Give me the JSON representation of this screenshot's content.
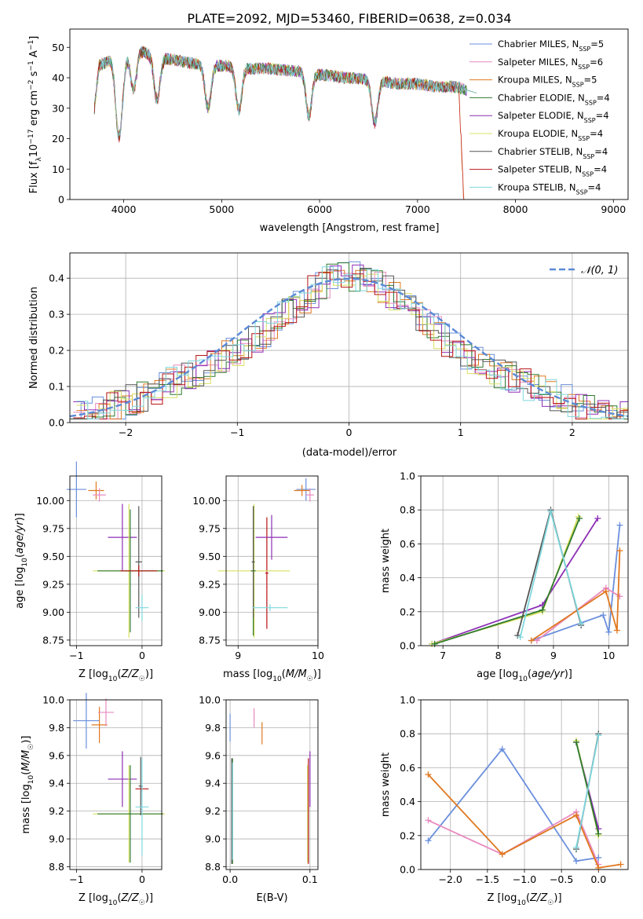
{
  "title": "PLATE=2092, MJD=53460, FIBERID=0638, z=0.034",
  "series": [
    {
      "name": "Chabrier MILES",
      "nssp": "5",
      "color": "#6a8fdc"
    },
    {
      "name": "Salpeter MILES",
      "nssp": "6",
      "color": "#e88ac0"
    },
    {
      "name": "Kroupa MILES",
      "nssp": "5",
      "color": "#e07820"
    },
    {
      "name": "Chabrier ELODIE",
      "nssp": "4",
      "color": "#2f7a2f"
    },
    {
      "name": "Salpeter ELODIE",
      "nssp": "4",
      "color": "#8e2fb5"
    },
    {
      "name": "Kroupa ELODIE",
      "nssp": "4",
      "color": "#d8e060"
    },
    {
      "name": "Chabrier STELIB",
      "nssp": "4",
      "color": "#555555"
    },
    {
      "name": "Salpeter STELIB",
      "nssp": "4",
      "color": "#b81414"
    },
    {
      "name": "Kroupa STELIB",
      "nssp": "4",
      "color": "#7fd8de"
    }
  ],
  "chart_data": [
    {
      "id": "spectrum",
      "type": "line",
      "xlabel": "wavelength [Angstrom, rest frame]",
      "ylabel": "Flux [f_λ 10^-17 erg cm^-2 s^-1 A^-1]",
      "xlim": [
        3450,
        9150
      ],
      "ylim": [
        0,
        56
      ],
      "xticks": [
        4000,
        5000,
        6000,
        7000,
        8000,
        9000
      ],
      "yticks": [
        0,
        10,
        20,
        30,
        40,
        50
      ],
      "grid": false,
      "legend": "top-right",
      "continuum": [
        [
          3700,
          30
        ],
        [
          3750,
          44
        ],
        [
          3820,
          45
        ],
        [
          3900,
          47
        ],
        [
          3950,
          44
        ],
        [
          4000,
          46
        ],
        [
          4100,
          50
        ],
        [
          4300,
          47
        ],
        [
          4500,
          46
        ],
        [
          4800,
          44
        ],
        [
          5000,
          44
        ],
        [
          5300,
          43
        ],
        [
          5500,
          43
        ],
        [
          5800,
          42
        ],
        [
          6000,
          41
        ],
        [
          6300,
          40
        ],
        [
          6600,
          39
        ],
        [
          6800,
          38
        ],
        [
          7000,
          38
        ],
        [
          7200,
          37
        ],
        [
          7400,
          37
        ],
        [
          7500,
          36
        ]
      ],
      "absorption_lines": [
        3934,
        3969,
        4101,
        4340,
        4861,
        5175,
        5890,
        6563
      ]
    },
    {
      "id": "residuals",
      "type": "bar",
      "xlabel": "(data-model)/error",
      "ylabel": "Normed distribution",
      "xlim": [
        -2.5,
        2.5
      ],
      "ylim": [
        0,
        0.47
      ],
      "xticks": [
        -2,
        -1,
        0,
        1,
        2
      ],
      "yticks": [
        0.0,
        0.1,
        0.2,
        0.3,
        0.4
      ],
      "grid": true,
      "legend": "top-right",
      "reference_label": "𝒩(0, 1)",
      "bin_width": 0.1
    },
    {
      "id": "age-vs-Z",
      "type": "scatter",
      "xlabel": "Z [log10(Z/Z☉)]",
      "ylabel": "age [log10(age/yr)]",
      "xlim": [
        -1.1,
        0.3
      ],
      "ylim": [
        8.7,
        10.22
      ],
      "xticks": [
        -1,
        0
      ],
      "yticks": [
        8.75,
        9.0,
        9.25,
        9.5,
        9.75,
        10.0
      ],
      "grid": true,
      "errorbars": [
        {
          "series": 0,
          "x": -1.0,
          "y": 10.1,
          "xerr": 0.15,
          "yerr": 0.25
        },
        {
          "series": 2,
          "x": -0.7,
          "y": 10.09,
          "xerr": 0.12,
          "yerr": 0.08
        },
        {
          "series": 1,
          "x": -0.65,
          "y": 10.05,
          "xerr": 0.1,
          "yerr": 0.06
        },
        {
          "series": 4,
          "x": -0.3,
          "y": 9.67,
          "xerr": 0.22,
          "yerr": 0.3
        },
        {
          "series": 5,
          "x": -0.2,
          "y": 9.37,
          "xerr": 0.55,
          "yerr": 0.6
        },
        {
          "series": 3,
          "x": -0.18,
          "y": 9.37,
          "xerr": 0.5,
          "yerr": 0.55
        },
        {
          "series": 6,
          "x": -0.05,
          "y": 9.45,
          "xerr": 0.05,
          "yerr": 0.5
        },
        {
          "series": 8,
          "x": 0.0,
          "y": 9.04,
          "xerr": 0.1,
          "yerr": 0.12
        },
        {
          "series": 7,
          "x": -0.05,
          "y": 9.37,
          "xerr": 0.28,
          "yerr": 0.05
        }
      ]
    },
    {
      "id": "age-vs-mass",
      "type": "scatter",
      "xlabel": "mass [log10(M/M☉)]",
      "ylabel": "",
      "xlim": [
        8.85,
        10.0
      ],
      "ylim": [
        8.7,
        10.22
      ],
      "xticks": [
        9,
        10
      ],
      "yticks": [
        8.75,
        9.0,
        9.25,
        9.5,
        9.75,
        10.0
      ],
      "grid": true,
      "errorbars": [
        {
          "series": 0,
          "x": 9.85,
          "y": 10.1,
          "xerr": 0.12,
          "yerr": 0.1
        },
        {
          "series": 2,
          "x": 9.8,
          "y": 10.09,
          "xerr": 0.1,
          "yerr": 0.05
        },
        {
          "series": 1,
          "x": 9.9,
          "y": 10.05,
          "xerr": 0.05,
          "yerr": 0.06
        },
        {
          "series": 7,
          "x": 9.36,
          "y": 9.35,
          "xerr": 0.02,
          "yerr": 0.5
        },
        {
          "series": 4,
          "x": 9.42,
          "y": 9.67,
          "xerr": 0.2,
          "yerr": 0.2
        },
        {
          "series": 5,
          "x": 9.2,
          "y": 9.37,
          "xerr": 0.45,
          "yerr": 0.6
        },
        {
          "series": 3,
          "x": 9.19,
          "y": 9.37,
          "xerr": 0.03,
          "yerr": 0.58
        },
        {
          "series": 6,
          "x": 9.19,
          "y": 9.45,
          "xerr": 0.02,
          "yerr": 0.5
        },
        {
          "series": 8,
          "x": 9.4,
          "y": 9.04,
          "xerr": 0.22,
          "yerr": 0.03
        }
      ]
    },
    {
      "id": "weight-vs-age",
      "type": "line",
      "xlabel": "age [log10(age/yr)]",
      "ylabel": "mass weight",
      "xlim": [
        6.6,
        10.35
      ],
      "ylim": [
        0,
        1
      ],
      "xticks": [
        7,
        8,
        9,
        10
      ],
      "yticks": [
        0.0,
        0.2,
        0.4,
        0.6,
        0.8,
        1.0
      ],
      "grid": true,
      "lines": [
        {
          "series": 0,
          "x": [
            8.6,
            9.9,
            10.0,
            10.2
          ],
          "y": [
            0.03,
            0.18,
            0.08,
            0.71
          ]
        },
        {
          "series": 1,
          "x": [
            8.7,
            9.95,
            10.2
          ],
          "y": [
            0.03,
            0.34,
            0.29
          ]
        },
        {
          "series": 2,
          "x": [
            8.6,
            9.95,
            10.15,
            10.2
          ],
          "y": [
            0.03,
            0.32,
            0.09,
            0.56
          ]
        },
        {
          "series": 4,
          "x": [
            6.8,
            8.8,
            9.8
          ],
          "y": [
            0.01,
            0.24,
            0.75
          ]
        },
        {
          "series": 5,
          "x": [
            6.8,
            8.8,
            9.45
          ],
          "y": [
            0.01,
            0.2,
            0.76
          ]
        },
        {
          "series": 3,
          "x": [
            6.85,
            8.8,
            9.47
          ],
          "y": [
            0.01,
            0.21,
            0.75
          ]
        },
        {
          "series": 6,
          "x": [
            8.35,
            8.95,
            9.5
          ],
          "y": [
            0.06,
            0.8,
            0.12
          ]
        },
        {
          "series": 8,
          "x": [
            8.4,
            8.95,
            9.5
          ],
          "y": [
            0.05,
            0.79,
            0.13
          ]
        }
      ]
    },
    {
      "id": "mass-vs-Z",
      "type": "scatter",
      "xlabel": "Z [log10(Z/Z☉)]",
      "ylabel": "mass [log10(M/M☉)]",
      "xlim": [
        -1.1,
        0.3
      ],
      "ylim": [
        8.78,
        10.0
      ],
      "xticks": [
        -1,
        0
      ],
      "yticks": [
        8.8,
        9.0,
        9.2,
        9.4,
        9.6,
        9.8,
        10.0
      ],
      "grid": true,
      "errorbars": [
        {
          "series": 0,
          "x": -0.85,
          "y": 9.85,
          "xerr": 0.2,
          "yerr": 0.2
        },
        {
          "series": 2,
          "x": -0.65,
          "y": 9.82,
          "xerr": 0.12,
          "yerr": 0.13
        },
        {
          "series": 1,
          "x": -0.55,
          "y": 9.91,
          "xerr": 0.12,
          "yerr": 0.1
        },
        {
          "series": 4,
          "x": -0.3,
          "y": 9.43,
          "xerr": 0.22,
          "yerr": 0.2
        },
        {
          "series": 5,
          "x": -0.2,
          "y": 9.18,
          "xerr": 0.55,
          "yerr": 0.35
        },
        {
          "series": 3,
          "x": -0.18,
          "y": 9.18,
          "xerr": 0.5,
          "yerr": 0.35
        },
        {
          "series": 6,
          "x": -0.02,
          "y": 9.38,
          "xerr": 0.03,
          "yerr": 0.21
        },
        {
          "series": 7,
          "x": 0.0,
          "y": 9.36,
          "xerr": 0.1,
          "yerr": 0.02
        },
        {
          "series": 8,
          "x": 0.0,
          "y": 9.23,
          "xerr": 0.1,
          "yerr": 0.35
        }
      ]
    },
    {
      "id": "mass-vs-EBV",
      "type": "scatter",
      "xlabel": "E(B-V)",
      "ylabel": "",
      "xlim": [
        -0.005,
        0.11
      ],
      "ylim": [
        8.78,
        10.0
      ],
      "xticks": [
        0.0,
        0.1
      ],
      "yticks": [
        8.8,
        9.0,
        9.2,
        9.4,
        9.6,
        9.8,
        10.0
      ],
      "grid": true,
      "errorbars": [
        {
          "series": 0,
          "x": 0.0,
          "y": 9.8,
          "xerr": 0,
          "yerr": 0.1
        },
        {
          "series": 1,
          "x": 0.03,
          "y": 9.87,
          "xerr": 0,
          "yerr": 0.07
        },
        {
          "series": 2,
          "x": 0.04,
          "y": 9.76,
          "xerr": 0,
          "yerr": 0.08
        },
        {
          "series": 3,
          "x": 0.003,
          "y": 9.2,
          "xerr": 0,
          "yerr": 0.38
        },
        {
          "series": 6,
          "x": 0.002,
          "y": 9.2,
          "xerr": 0,
          "yerr": 0.38
        },
        {
          "series": 8,
          "x": 0.003,
          "y": 9.2,
          "xerr": 0,
          "yerr": 0.35
        },
        {
          "series": 4,
          "x": 0.1,
          "y": 9.43,
          "xerr": 0,
          "yerr": 0.2
        },
        {
          "series": 5,
          "x": 0.097,
          "y": 9.18,
          "xerr": 0,
          "yerr": 0.35
        },
        {
          "series": 7,
          "x": 0.098,
          "y": 9.2,
          "xerr": 0,
          "yerr": 0.38
        }
      ]
    },
    {
      "id": "weight-vs-Z",
      "type": "line",
      "xlabel": "Z [log10(Z/Z☉)]",
      "ylabel": "mass weight",
      "xlim": [
        -2.4,
        0.4
      ],
      "ylim": [
        0,
        1
      ],
      "xticks": [
        -2.0,
        -1.5,
        -1.0,
        -0.5,
        0.0
      ],
      "yticks": [
        0.0,
        0.2,
        0.4,
        0.6,
        0.8,
        1.0
      ],
      "grid": true,
      "lines": [
        {
          "series": 0,
          "x": [
            -2.3,
            -1.3,
            -0.3,
            0.0
          ],
          "y": [
            0.17,
            0.71,
            0.05,
            0.07
          ]
        },
        {
          "series": 1,
          "x": [
            -2.3,
            -1.3,
            -0.3,
            0.0
          ],
          "y": [
            0.29,
            0.09,
            0.34,
            0.03
          ]
        },
        {
          "series": 2,
          "x": [
            -2.3,
            -1.3,
            -0.3,
            0.0,
            0.3
          ],
          "y": [
            0.56,
            0.09,
            0.32,
            0.01,
            0.03
          ]
        },
        {
          "series": 4,
          "x": [
            -0.3,
            0.0
          ],
          "y": [
            0.75,
            0.24
          ]
        },
        {
          "series": 5,
          "x": [
            -0.3,
            0.0
          ],
          "y": [
            0.76,
            0.2
          ]
        },
        {
          "series": 3,
          "x": [
            -0.3,
            0.0
          ],
          "y": [
            0.75,
            0.21
          ]
        },
        {
          "series": 6,
          "x": [
            -0.3,
            0.0
          ],
          "y": [
            0.12,
            0.8
          ]
        },
        {
          "series": 8,
          "x": [
            -0.3,
            0.0
          ],
          "y": [
            0.13,
            0.79
          ]
        }
      ]
    }
  ]
}
